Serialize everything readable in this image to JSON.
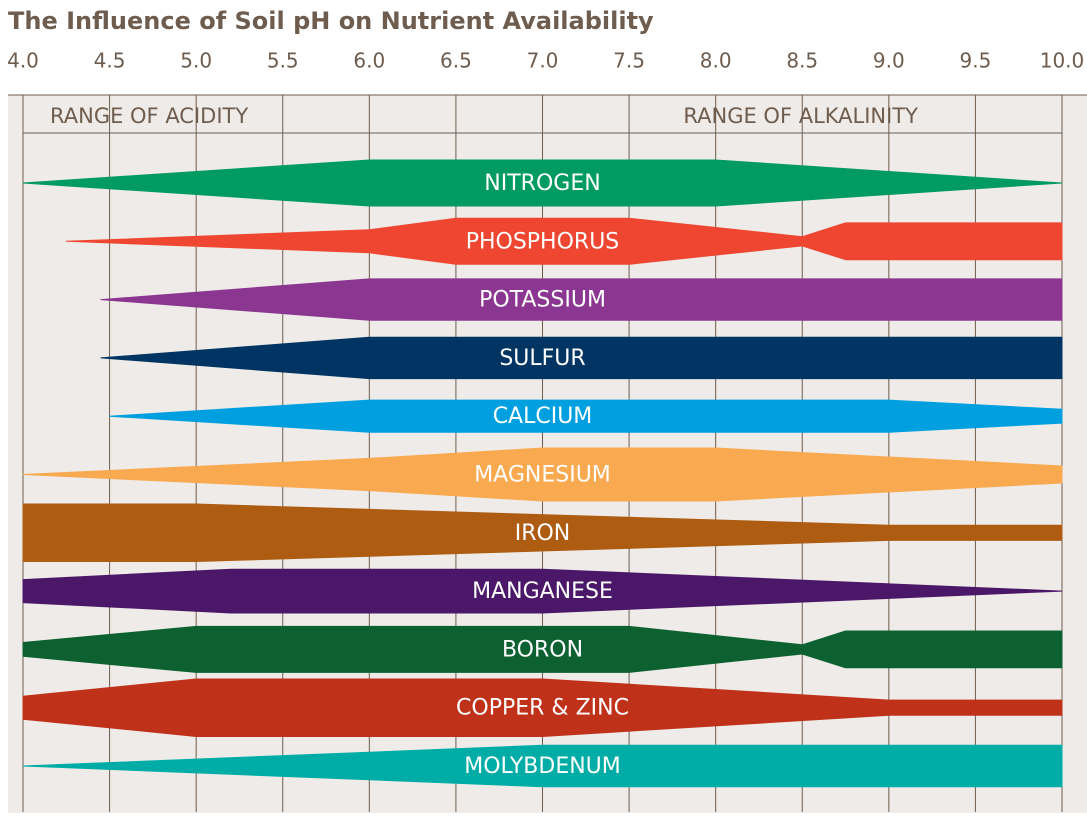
{
  "chart_data": {
    "type": "band",
    "title": "The Influence of Soil pH on Nutrient Availability",
    "annotations": [
      "RANGE OF ACIDITY",
      "RANGE OF ALKALINITY"
    ],
    "xlim": [
      4,
      10
    ],
    "xticks": [
      {
        "value": 4,
        "label": "4.0"
      },
      {
        "value": 4.5,
        "label": "4.5"
      },
      {
        "value": 5,
        "label": "5.0"
      },
      {
        "value": 5.5,
        "label": "5.5"
      },
      {
        "value": 6,
        "label": "6.0"
      },
      {
        "value": 6.5,
        "label": "6.5"
      },
      {
        "value": 7,
        "label": "7.0"
      },
      {
        "value": 7.5,
        "label": "7.5"
      },
      {
        "value": 8,
        "label": "8.0"
      },
      {
        "value": 8.5,
        "label": "8.5"
      },
      {
        "value": 9,
        "label": "9.0"
      },
      {
        "value": 9.5,
        "label": "9.5"
      },
      {
        "value": 10,
        "label": "10.0"
      }
    ],
    "grid": true,
    "series": [
      {
        "name": "NITROGEN",
        "color": "#009a63",
        "x": [
          4,
          6,
          8,
          10
        ],
        "values": [
          0,
          1,
          1,
          0
        ]
      },
      {
        "name": "PHOSPHORUS",
        "color": "#ee4631",
        "x": [
          4.25,
          6,
          6.5,
          7.5,
          8.5,
          8.75,
          10
        ],
        "values": [
          0,
          0.5,
          1,
          1,
          0.2,
          0.8,
          0.8
        ]
      },
      {
        "name": "POTASSIUM",
        "color": "#8b3691",
        "x": [
          4.45,
          6,
          10
        ],
        "values": [
          0,
          0.9,
          0.9
        ]
      },
      {
        "name": "SULFUR",
        "color": "#003462",
        "x": [
          4.45,
          6,
          10
        ],
        "values": [
          0,
          0.9,
          0.9
        ]
      },
      {
        "name": "CALCIUM",
        "color": "#00a0e0",
        "x": [
          4.5,
          6,
          9,
          10
        ],
        "values": [
          0,
          0.7,
          0.7,
          0.3
        ]
      },
      {
        "name": "MAGNESIUM",
        "color": "#f9a94f",
        "x": [
          4,
          6,
          7,
          8,
          10
        ],
        "values": [
          0,
          0.7,
          1.15,
          1.15,
          0.37
        ]
      },
      {
        "name": "IRON",
        "color": "#ad5c12",
        "x": [
          4,
          5,
          9,
          10
        ],
        "values": [
          1.25,
          1.25,
          0.33,
          0.33
        ]
      },
      {
        "name": "MANGANESE",
        "color": "#4b1768",
        "x": [
          4,
          5.2,
          7,
          10
        ],
        "values": [
          0.5,
          0.95,
          0.95,
          0
        ]
      },
      {
        "name": "BORON",
        "color": "#0d6130",
        "x": [
          4,
          5,
          7.5,
          8.5,
          8.75,
          10
        ],
        "values": [
          0.3,
          1,
          1,
          0.2,
          0.8,
          0.8
        ]
      },
      {
        "name": "COPPER & ZINC",
        "color": "#c0311a",
        "x": [
          4,
          5,
          7,
          9,
          10
        ],
        "values": [
          0.5,
          1.25,
          1.25,
          0.33,
          0.33
        ]
      },
      {
        "name": "MOLYBDENUM",
        "color": "#00ada6",
        "x": [
          4,
          7,
          10
        ],
        "values": [
          0,
          0.9,
          0.9
        ]
      }
    ]
  }
}
